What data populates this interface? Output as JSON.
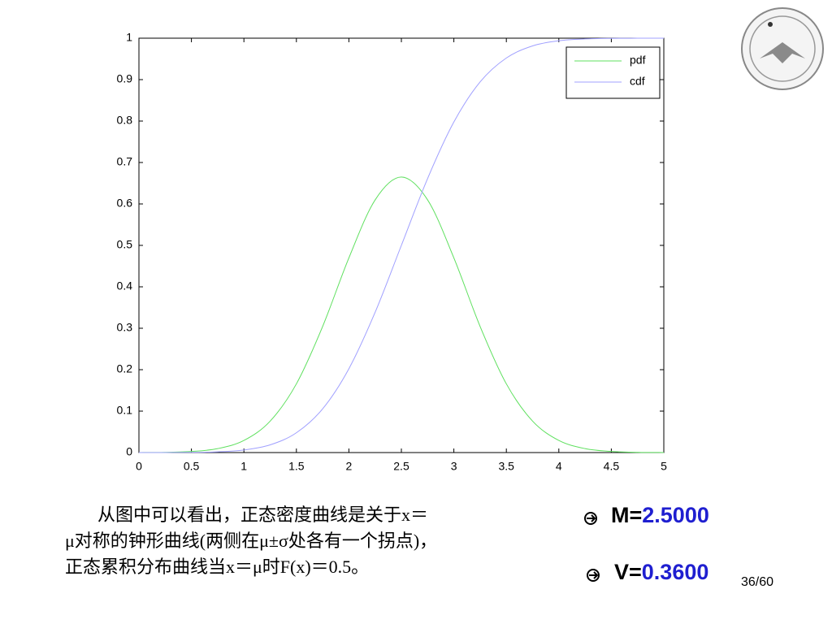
{
  "chart_data": {
    "type": "line",
    "x": [
      0,
      0.25,
      0.5,
      0.75,
      1,
      1.25,
      1.5,
      1.75,
      2,
      2.25,
      2.5,
      2.75,
      3,
      3.25,
      3.5,
      3.75,
      4,
      4.25,
      4.5,
      4.75,
      5
    ],
    "series": [
      {
        "name": "pdf",
        "color": "#5fe05f",
        "values": [
          0.0001,
          0.0006,
          0.0026,
          0.0095,
          0.0292,
          0.0759,
          0.1658,
          0.3044,
          0.4698,
          0.6097,
          0.6649,
          0.6097,
          0.4698,
          0.3044,
          0.1658,
          0.0759,
          0.0292,
          0.0095,
          0.0026,
          0.0006,
          0.0001
        ]
      },
      {
        "name": "cdf",
        "color": "#a0a0ff",
        "values": [
          0,
          0.0001,
          0.0004,
          0.0018,
          0.0062,
          0.0186,
          0.0478,
          0.1056,
          0.2023,
          0.3385,
          0.5,
          0.6615,
          0.7977,
          0.8944,
          0.9522,
          0.9814,
          0.9938,
          0.9982,
          0.9996,
          0.9999,
          1
        ]
      }
    ],
    "xlim": [
      0,
      5
    ],
    "xticks": [
      0,
      0.5,
      1,
      1.5,
      2,
      2.5,
      3,
      3.5,
      4,
      4.5,
      5
    ],
    "ylim": [
      0,
      1
    ],
    "yticks": [
      0,
      0.1,
      0.2,
      0.3,
      0.4,
      0.5,
      0.6,
      0.7,
      0.8,
      0.9,
      1
    ],
    "legend": "top-right"
  },
  "text": {
    "lines": [
      "从图中可以看出，正态密度曲线是关于x＝",
      "μ对称的钟形曲线(两侧在μ±σ处各有一个拐点)，",
      "正态累积分布曲线当x＝μ时F(x)＝0.5。"
    ]
  },
  "stats": [
    {
      "label": "M=",
      "value": "2.5000"
    },
    {
      "label": "V=",
      "value": "0.3600"
    }
  ],
  "page_number": "36/60"
}
